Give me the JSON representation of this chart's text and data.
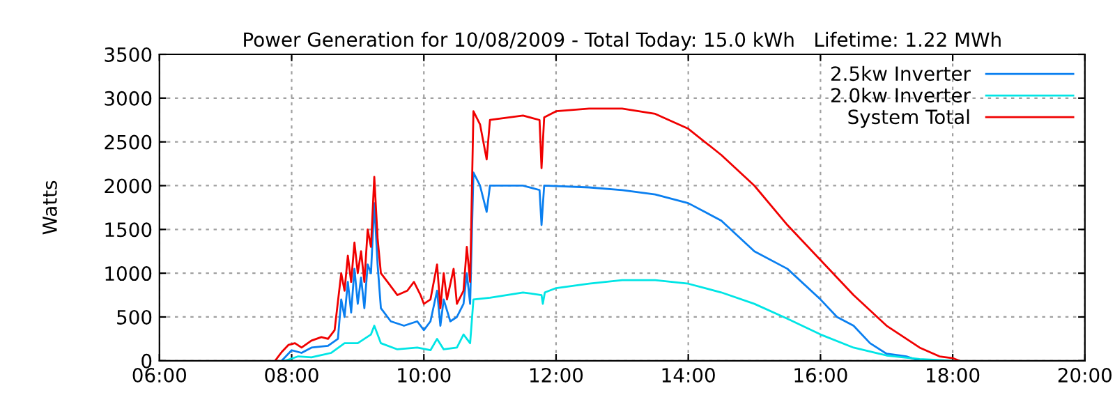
{
  "chart_data": {
    "type": "line",
    "title": "Power Generation for 10/08/2009 - Total Today: 15.0 kWh   Lifetime: 1.22 MWh",
    "ylabel": "Watts",
    "xlim": [
      6,
      20
    ],
    "xticks": [
      {
        "value": 6,
        "label": "06:00"
      },
      {
        "value": 8,
        "label": "08:00"
      },
      {
        "value": 10,
        "label": "10:00"
      },
      {
        "value": 12,
        "label": "12:00"
      },
      {
        "value": 14,
        "label": "14:00"
      },
      {
        "value": 16,
        "label": "16:00"
      },
      {
        "value": 18,
        "label": "18:00"
      },
      {
        "value": 20,
        "label": "20:00"
      }
    ],
    "ylim": [
      0,
      3500
    ],
    "yticks": [
      0,
      500,
      1000,
      1500,
      2000,
      2500,
      3000,
      3500
    ],
    "grid": true,
    "legend": "top right",
    "marker": "none",
    "line_style": "solid",
    "series": [
      {
        "name": "2.5kw Inverter",
        "color": "#0a7ff0",
        "x": [
          7.85,
          8.0,
          8.15,
          8.3,
          8.55,
          8.7,
          8.75,
          8.8,
          8.85,
          8.9,
          8.95,
          9.0,
          9.05,
          9.1,
          9.15,
          9.2,
          9.25,
          9.3,
          9.35,
          9.5,
          9.7,
          9.9,
          10.0,
          10.1,
          10.2,
          10.25,
          10.3,
          10.4,
          10.5,
          10.6,
          10.65,
          10.7,
          10.75,
          10.85,
          10.95,
          11.0,
          11.5,
          11.75,
          11.78,
          11.82,
          12.5,
          13.0,
          13.5,
          14.0,
          14.5,
          15.0,
          15.5,
          16.0,
          16.25,
          16.5,
          16.75,
          17.0,
          17.3,
          17.5
        ],
        "values": [
          0,
          120,
          90,
          150,
          170,
          250,
          700,
          500,
          900,
          550,
          1050,
          650,
          950,
          600,
          1100,
          1000,
          1800,
          1100,
          600,
          450,
          400,
          450,
          350,
          450,
          800,
          400,
          700,
          450,
          500,
          650,
          1000,
          650,
          2150,
          2000,
          1700,
          2000,
          2000,
          1950,
          1550,
          2000,
          1980,
          1950,
          1900,
          1800,
          1600,
          1250,
          1050,
          700,
          500,
          400,
          200,
          80,
          50,
          0
        ]
      },
      {
        "name": "2.0kw Inverter",
        "color": "#00e5e5",
        "x": [
          7.9,
          8.1,
          8.3,
          8.6,
          8.8,
          9.0,
          9.2,
          9.25,
          9.35,
          9.6,
          9.9,
          10.1,
          10.2,
          10.3,
          10.5,
          10.6,
          10.7,
          10.75,
          11.0,
          11.5,
          11.78,
          11.8,
          11.83,
          12.0,
          12.5,
          13.0,
          13.5,
          14.0,
          14.5,
          15.0,
          15.5,
          16.0,
          16.5,
          17.0,
          17.5,
          18.0
        ],
        "values": [
          0,
          50,
          40,
          90,
          200,
          200,
          300,
          400,
          200,
          130,
          150,
          120,
          250,
          130,
          150,
          300,
          200,
          700,
          720,
          780,
          750,
          650,
          780,
          830,
          880,
          920,
          920,
          880,
          780,
          650,
          480,
          300,
          150,
          60,
          20,
          0
        ]
      },
      {
        "name": "System Total",
        "color": "#f00000",
        "x": [
          7.75,
          7.85,
          7.95,
          8.05,
          8.15,
          8.3,
          8.45,
          8.55,
          8.65,
          8.75,
          8.8,
          8.85,
          8.9,
          8.95,
          9.0,
          9.05,
          9.1,
          9.15,
          9.2,
          9.25,
          9.3,
          9.35,
          9.45,
          9.6,
          9.75,
          9.85,
          9.95,
          10.0,
          10.1,
          10.2,
          10.25,
          10.3,
          10.35,
          10.45,
          10.5,
          10.6,
          10.65,
          10.7,
          10.75,
          10.85,
          10.95,
          11.0,
          11.3,
          11.5,
          11.75,
          11.78,
          11.82,
          12.0,
          12.5,
          13.0,
          13.5,
          14.0,
          14.5,
          15.0,
          15.5,
          16.0,
          16.5,
          17.0,
          17.5,
          17.8,
          18.0,
          18.1
        ],
        "values": [
          0,
          100,
          180,
          200,
          150,
          230,
          270,
          250,
          350,
          1000,
          800,
          1200,
          900,
          1350,
          1000,
          1250,
          900,
          1500,
          1300,
          2100,
          1400,
          1000,
          900,
          750,
          800,
          900,
          750,
          650,
          700,
          1100,
          600,
          1000,
          700,
          1050,
          650,
          800,
          1300,
          900,
          2850,
          2700,
          2300,
          2750,
          2780,
          2800,
          2750,
          2200,
          2780,
          2850,
          2880,
          2880,
          2820,
          2650,
          2350,
          2000,
          1550,
          1150,
          750,
          400,
          150,
          50,
          30,
          0
        ]
      }
    ]
  }
}
